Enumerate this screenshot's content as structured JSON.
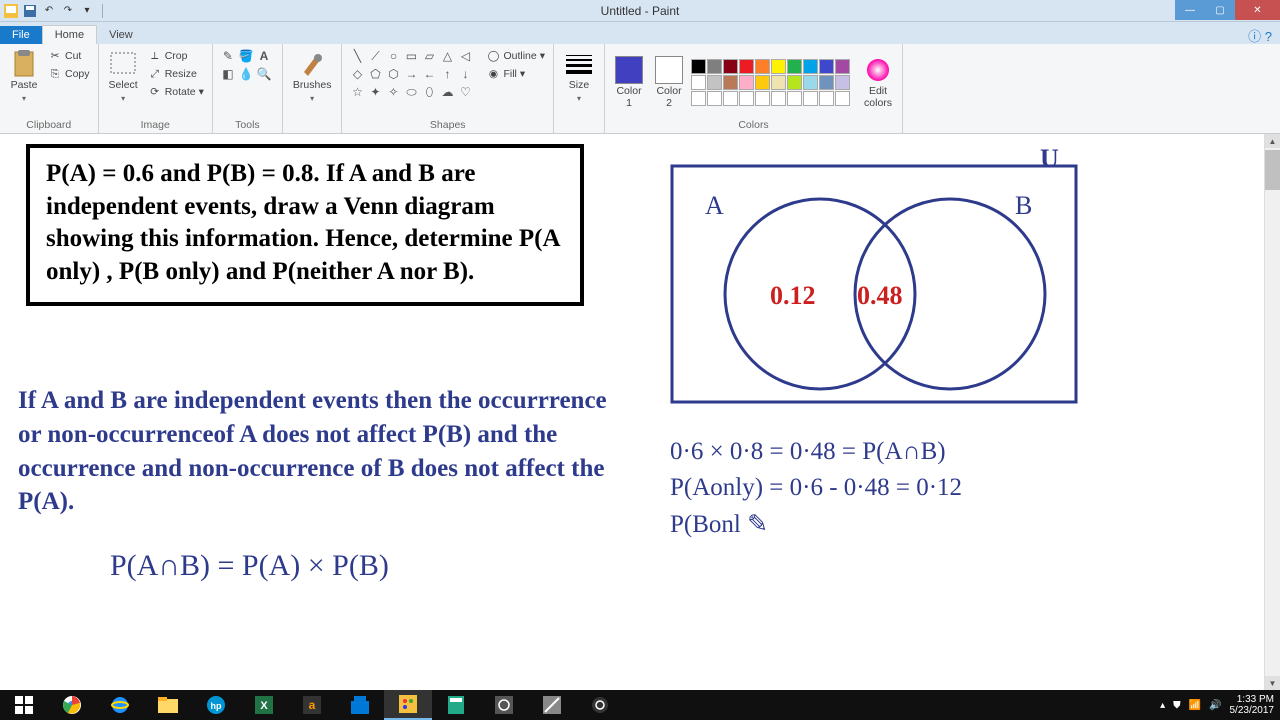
{
  "window": {
    "title": "Untitled - Paint"
  },
  "tabs": {
    "file": "File",
    "home": "Home",
    "view": "View"
  },
  "ribbon": {
    "clipboard": {
      "label": "Clipboard",
      "paste": "Paste",
      "cut": "Cut",
      "copy": "Copy"
    },
    "image": {
      "label": "Image",
      "select": "Select",
      "crop": "Crop",
      "resize": "Resize",
      "rotate": "Rotate"
    },
    "tools": {
      "label": "Tools"
    },
    "brushes": {
      "label": "Brushes"
    },
    "shapes": {
      "label": "Shapes",
      "outline": "Outline",
      "fill": "Fill"
    },
    "size": {
      "label": "Size"
    },
    "color1": {
      "label": "Color\n1"
    },
    "color2": {
      "label": "Color\n2"
    },
    "colors_label": "Colors",
    "edit_colors": "Edit\ncolors"
  },
  "colors": {
    "color1": "#4040c0",
    "color2": "#ffffff",
    "palette_row1": [
      "#000000",
      "#7f7f7f",
      "#880015",
      "#ed1c24",
      "#ff7f27",
      "#fff200",
      "#22b14c",
      "#00a2e8",
      "#3f48cc",
      "#a349a4"
    ],
    "palette_row2": [
      "#ffffff",
      "#c3c3c3",
      "#b97a57",
      "#ffaec9",
      "#ffc90e",
      "#efe4b0",
      "#b5e61d",
      "#99d9ea",
      "#7092be",
      "#c8bfe7"
    ],
    "palette_row3": [
      "#ffffff",
      "#ffffff",
      "#ffffff",
      "#ffffff",
      "#ffffff",
      "#ffffff",
      "#ffffff",
      "#ffffff",
      "#ffffff",
      "#ffffff"
    ]
  },
  "content": {
    "problem": "P(A) = 0.6 and P(B) = 0.8. If A and B are independent events, draw a Venn diagram showing this information. Hence, determine P(A only) , P(B only) and P(neither A nor B).",
    "explain": "If A and B are independent events then the occurrrence or non-occurrenceof A does not affect P(B) and the occurrence and non-occurrence of B does not affect the P(A).",
    "formula": "P(A∩B) = P(A) × P(B)",
    "u_label": "U",
    "venn": {
      "stroke": "#2e3a8c",
      "label_A": "A",
      "label_B": "B",
      "val_A_only": "0.12",
      "val_AB": "0.48",
      "val_color": "#cc2020"
    },
    "calc_line1": "0·6 × 0·8 = 0·48 = P(A∩B)",
    "calc_line2": "P(Aonly) = 0·6 - 0·48 = 0·12",
    "calc_line3": "P(Bonl"
  },
  "taskbar": {
    "time": "1:33 PM",
    "date": "5/23/2017"
  }
}
